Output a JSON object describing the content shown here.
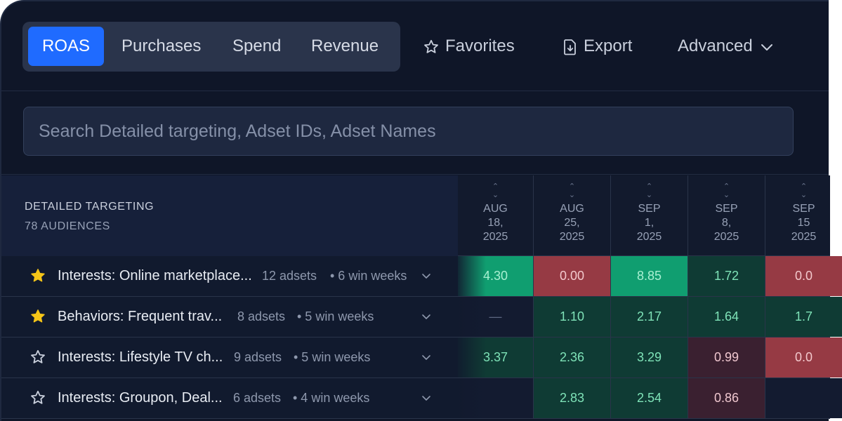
{
  "toolbar": {
    "metrics": [
      {
        "label": "ROAS",
        "active": true
      },
      {
        "label": "Purchases",
        "active": false
      },
      {
        "label": "Spend",
        "active": false
      },
      {
        "label": "Revenue",
        "active": false
      }
    ],
    "favorites_label": "Favorites",
    "export_label": "Export",
    "advanced_label": "Advanced"
  },
  "search": {
    "placeholder": "Search Detailed targeting, Adset IDs, Adset Names"
  },
  "table": {
    "header": {
      "title": "DETAILED TARGETING",
      "subtitle": "78 AUDIENCES",
      "dates": [
        {
          "month": "AUG",
          "day": "18,",
          "year": "2025"
        },
        {
          "month": "AUG",
          "day": "25,",
          "year": "2025"
        },
        {
          "month": "SEP",
          "day": "1,",
          "year": "2025"
        },
        {
          "month": "SEP",
          "day": "8,",
          "year": "2025"
        },
        {
          "month": "SEP",
          "day": "15",
          "year": "2025"
        }
      ]
    },
    "rows": [
      {
        "favorite": true,
        "name": "Interests: Online marketplace...",
        "adsets": "12 adsets",
        "wins": "• 6 win weeks",
        "values": [
          "4.30",
          "0.00",
          "8.85",
          "1.72",
          "0.0"
        ]
      },
      {
        "favorite": true,
        "name": "Behaviors: Frequent trav...",
        "adsets": "8 adsets",
        "wins": "• 5 win weeks",
        "values": [
          "—",
          "1.10",
          "2.17",
          "1.64",
          "1.7"
        ]
      },
      {
        "favorite": false,
        "name": "Interests: Lifestyle TV ch...",
        "adsets": "9 adsets",
        "wins": "• 5 win weeks",
        "values": [
          "3.37",
          "2.36",
          "3.29",
          "0.99",
          "0.0"
        ]
      },
      {
        "favorite": false,
        "name": "Interests: Groupon, Deal...",
        "adsets": "6 adsets",
        "wins": "• 4 win weeks",
        "values": [
          "",
          "2.83",
          "2.54",
          "0.86",
          ""
        ]
      }
    ]
  },
  "colors": {
    "accent": "#1f6bff",
    "star": "#f5c518",
    "high": "#109e70",
    "mid": "#0f3b34",
    "low_dark": "#3a2030",
    "low": "#963a44",
    "empty": "#131b30"
  }
}
